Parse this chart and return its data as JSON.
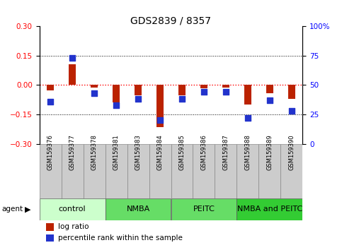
{
  "title": "GDS2839 / 8357",
  "samples": [
    "GSM159376",
    "GSM159377",
    "GSM159378",
    "GSM159381",
    "GSM159383",
    "GSM159384",
    "GSM159385",
    "GSM159386",
    "GSM159387",
    "GSM159388",
    "GSM159389",
    "GSM159390"
  ],
  "log_ratio": [
    -0.028,
    0.105,
    -0.012,
    -0.088,
    -0.052,
    -0.215,
    -0.052,
    -0.018,
    -0.012,
    -0.098,
    -0.042,
    -0.072
  ],
  "percentile_rank": [
    36,
    73,
    43,
    33,
    38,
    20,
    38,
    44,
    44,
    22,
    37,
    28
  ],
  "groups": [
    {
      "label": "control",
      "start": 0,
      "end": 3,
      "color": "#ccffcc"
    },
    {
      "label": "NMBA",
      "start": 3,
      "end": 6,
      "color": "#66dd66"
    },
    {
      "label": "PEITC",
      "start": 6,
      "end": 9,
      "color": "#66dd66"
    },
    {
      "label": "NMBA and PEITC",
      "start": 9,
      "end": 12,
      "color": "#33cc33"
    }
  ],
  "ylim_left": [
    -0.3,
    0.3
  ],
  "ylim_right": [
    0,
    100
  ],
  "yticks_left": [
    -0.3,
    -0.15,
    0,
    0.15,
    0.3
  ],
  "yticks_right": [
    0,
    25,
    50,
    75,
    100
  ],
  "bar_color": "#bb2200",
  "dot_color": "#2233cc",
  "bar_width": 0.35,
  "dot_size": 40,
  "label_bg": "#cccccc",
  "label_fontsize": 6.0,
  "group_fontsize": 8.0,
  "legend_fontsize": 7.5,
  "title_fontsize": 10
}
